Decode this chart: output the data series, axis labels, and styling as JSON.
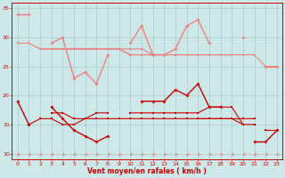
{
  "x": [
    0,
    1,
    2,
    3,
    4,
    5,
    6,
    7,
    8,
    9,
    10,
    11,
    12,
    13,
    14,
    15,
    16,
    17,
    18,
    19,
    20,
    21,
    22,
    23
  ],
  "s_light1": [
    34,
    34,
    null,
    29,
    30,
    23,
    24,
    22,
    27,
    null,
    29,
    32,
    27,
    27,
    28,
    32,
    33,
    29,
    null,
    null,
    30,
    null,
    25,
    25
  ],
  "s_light2": [
    29,
    29,
    28,
    28,
    28,
    28,
    28,
    28,
    28,
    28,
    27,
    27,
    27,
    27,
    27,
    27,
    27,
    27,
    27,
    27,
    27,
    27,
    25,
    25
  ],
  "s_light3": [
    null,
    null,
    28,
    28,
    28,
    28,
    28,
    28,
    28,
    28,
    27,
    27,
    27,
    27,
    27,
    27,
    27,
    27,
    27,
    27,
    null,
    null,
    null,
    null
  ],
  "s_light4": [
    null,
    null,
    null,
    28,
    28,
    28,
    28,
    28,
    28,
    28,
    28,
    28,
    27,
    27,
    27,
    27,
    27,
    27,
    27,
    27,
    null,
    null,
    null,
    null
  ],
  "s_dark1": [
    19,
    15,
    null,
    18,
    16,
    14,
    13,
    12,
    13,
    null,
    null,
    19,
    19,
    19,
    21,
    20,
    22,
    18,
    18,
    null,
    null,
    12,
    12,
    14
  ],
  "s_dark2": [
    null,
    15,
    16,
    16,
    15,
    15,
    16,
    17,
    17,
    null,
    17,
    17,
    17,
    17,
    17,
    17,
    17,
    18,
    18,
    18,
    15,
    null,
    14,
    14
  ],
  "s_dark3": [
    null,
    null,
    null,
    17,
    17,
    16,
    16,
    16,
    16,
    16,
    16,
    16,
    16,
    16,
    16,
    16,
    16,
    16,
    16,
    16,
    16,
    16,
    null,
    null
  ],
  "s_dark4": [
    null,
    null,
    null,
    null,
    null,
    null,
    null,
    null,
    null,
    null,
    null,
    null,
    null,
    null,
    null,
    null,
    16,
    16,
    16,
    16,
    15,
    15,
    null,
    null
  ],
  "bg_color": "#cce8e8",
  "grid_color": "#aacccc",
  "light_color": "#f08080",
  "dark_color": "#cc0000",
  "xlabel": "Vent moyen/en rafales ( km/h )",
  "ylim": [
    9,
    36
  ],
  "yticks": [
    10,
    15,
    20,
    25,
    30,
    35
  ],
  "xticks": [
    0,
    1,
    2,
    3,
    4,
    5,
    6,
    7,
    8,
    9,
    10,
    11,
    12,
    13,
    14,
    15,
    16,
    17,
    18,
    19,
    20,
    21,
    22,
    23
  ]
}
